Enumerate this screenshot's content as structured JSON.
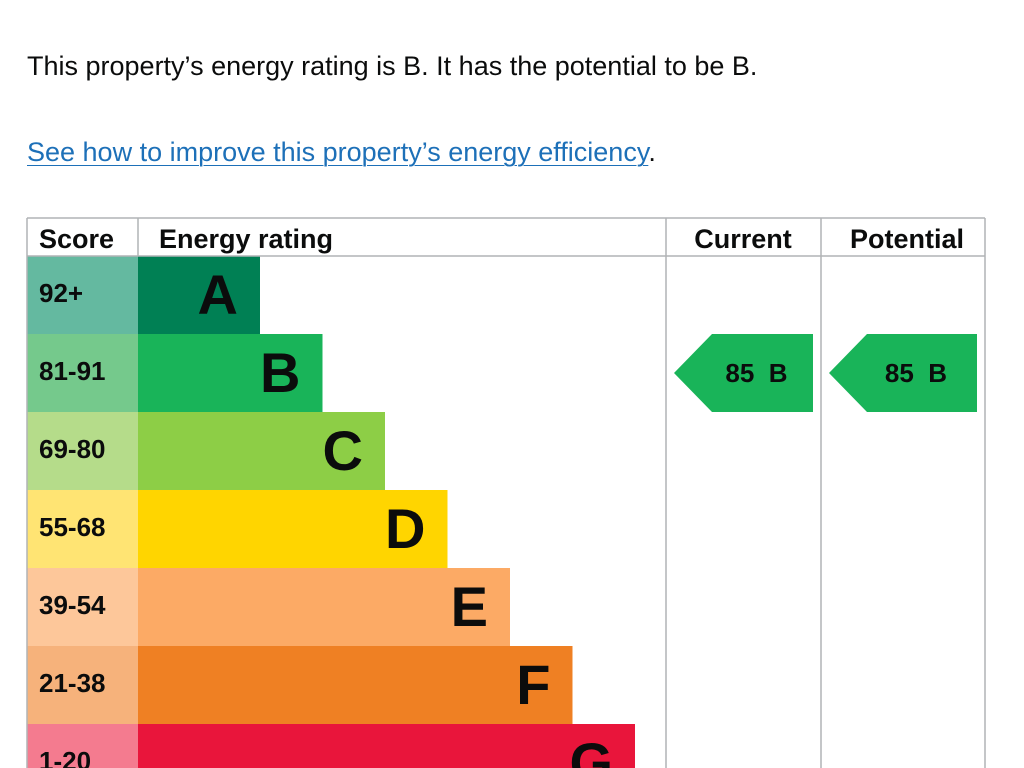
{
  "intro": {
    "text": "This property’s energy rating is B. It has the potential to be B."
  },
  "improve": {
    "link_text": "See how to improve this property’s energy efficiency",
    "trailing": "."
  },
  "chart_data": {
    "type": "bar",
    "headers": {
      "score": "Score",
      "rating": "Energy rating",
      "current": "Current",
      "potential": "Potential"
    },
    "bands": [
      {
        "band": "A",
        "score": "92+",
        "color": "#008054",
        "score_color": "#64b9a0"
      },
      {
        "band": "B",
        "score": "81-91",
        "color": "#19b459",
        "score_color": "#75c98c"
      },
      {
        "band": "C",
        "score": "69-80",
        "color": "#8dce46",
        "score_color": "#b5dc8a"
      },
      {
        "band": "D",
        "score": "55-68",
        "color": "#ffd500",
        "score_color": "#ffe473"
      },
      {
        "band": "E",
        "score": "39-54",
        "color": "#fcaa65",
        "score_color": "#fdc79a"
      },
      {
        "band": "F",
        "score": "21-38",
        "color": "#ef8023",
        "score_color": "#f6b27b"
      },
      {
        "band": "G",
        "score": "1-20",
        "color": "#e9153b",
        "score_color": "#f47b8f"
      }
    ],
    "current": {
      "score": 85,
      "band": "B",
      "label": "85  B",
      "color": "#19b459"
    },
    "potential": {
      "score": 85,
      "band": "B",
      "label": "85  B",
      "color": "#19b459"
    }
  }
}
